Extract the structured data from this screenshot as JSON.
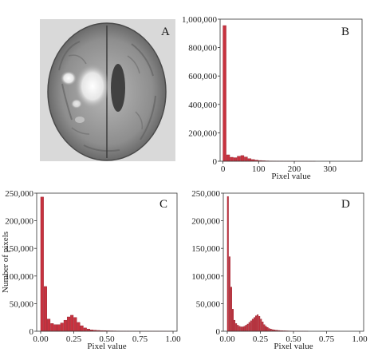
{
  "panels": {
    "A": {
      "label": "A",
      "image": "mri-brain-scan"
    }
  },
  "chart_data": [
    {
      "panel": "B",
      "type": "bar",
      "label": "B",
      "xlabel": "Pixel value",
      "ylabel": "",
      "xlim": [
        -8,
        390
      ],
      "ylim": [
        0,
        1000000
      ],
      "xticks": [
        0,
        100,
        200,
        300
      ],
      "yticks": [
        0,
        200000,
        400000,
        600000,
        800000,
        1000000
      ],
      "ytick_labels": [
        "0",
        "200,000",
        "400,000",
        "600,000",
        "800,000",
        "1,000,000"
      ],
      "xtick_labels": [
        "0",
        "100",
        "200",
        "300"
      ],
      "bin_width": 10,
      "x": [
        0,
        10,
        20,
        30,
        40,
        50,
        60,
        70,
        80,
        90,
        100,
        110,
        120,
        130,
        140,
        150,
        160,
        170,
        180,
        190,
        200,
        210,
        220,
        230,
        240,
        250
      ],
      "values": [
        955000,
        45000,
        28000,
        25000,
        35000,
        40000,
        30000,
        18000,
        12000,
        8000,
        5000,
        3500,
        2500,
        1800,
        1300,
        1000,
        800,
        600,
        500,
        400,
        300,
        200,
        150,
        100,
        80,
        50
      ]
    },
    {
      "panel": "C",
      "type": "bar",
      "label": "C",
      "xlabel": "Pixel value",
      "ylabel": "Number of pixels",
      "xlim": [
        -0.03,
        1.03
      ],
      "ylim": [
        0,
        250000
      ],
      "xticks": [
        0,
        0.25,
        0.5,
        0.75,
        1.0
      ],
      "xtick_labels": [
        "0.00",
        "0.25",
        "0.50",
        "0.75",
        "1.00"
      ],
      "yticks": [
        0,
        50000,
        100000,
        150000,
        200000,
        250000
      ],
      "ytick_labels": [
        "0",
        "50,000",
        "100,000",
        "150,000",
        "200,000",
        "250,000"
      ],
      "bin_width": 0.025,
      "x": [
        0.0,
        0.025,
        0.05,
        0.075,
        0.1,
        0.125,
        0.15,
        0.175,
        0.2,
        0.225,
        0.25,
        0.275,
        0.3,
        0.325,
        0.35,
        0.375,
        0.4,
        0.425,
        0.45,
        0.475,
        0.5,
        0.525,
        0.55,
        0.575,
        0.6,
        0.625,
        0.65,
        0.675,
        0.7,
        0.725,
        0.75,
        0.775,
        0.8,
        0.825,
        0.85,
        0.875,
        0.9,
        0.925,
        0.95,
        0.975
      ],
      "values": [
        243000,
        81000,
        22000,
        14000,
        12000,
        12000,
        15000,
        20000,
        26000,
        29000,
        25000,
        16000,
        10000,
        6000,
        4000,
        2500,
        2000,
        1500,
        1200,
        1000,
        800,
        700,
        600,
        500,
        400,
        350,
        300,
        280,
        250,
        200,
        180,
        160,
        140,
        120,
        100,
        90,
        80,
        70,
        60,
        50
      ]
    },
    {
      "panel": "D",
      "type": "bar",
      "label": "D",
      "xlabel": "Pixel value",
      "ylabel": "",
      "xlim": [
        -0.03,
        1.03
      ],
      "ylim": [
        0,
        250000
      ],
      "xticks": [
        0,
        0.25,
        0.5,
        0.75,
        1.0
      ],
      "xtick_labels": [
        "0.00",
        "0.25",
        "0.50",
        "0.75",
        "1.00"
      ],
      "yticks": [
        0,
        50000,
        100000,
        150000,
        200000,
        250000
      ],
      "ytick_labels": [
        "0",
        "50,000",
        "100,000",
        "150,000",
        "200,000",
        "250,000"
      ],
      "bin_width": 0.0125,
      "x": [
        0.0,
        0.0125,
        0.025,
        0.0375,
        0.05,
        0.0625,
        0.075,
        0.0875,
        0.1,
        0.1125,
        0.125,
        0.1375,
        0.15,
        0.1625,
        0.175,
        0.1875,
        0.2,
        0.2125,
        0.225,
        0.2375,
        0.25,
        0.2625,
        0.275,
        0.2875,
        0.3,
        0.3125,
        0.325,
        0.3375,
        0.35,
        0.3625,
        0.375,
        0.3875,
        0.4,
        0.4125,
        0.425,
        0.4375,
        0.45,
        0.4625,
        0.475,
        0.4875,
        0.5,
        0.5125,
        0.525,
        0.5375,
        0.55,
        0.5625,
        0.575,
        0.5875,
        0.6
      ],
      "values": [
        244000,
        135000,
        80000,
        40000,
        20000,
        14000,
        11000,
        9000,
        8000,
        8000,
        9000,
        11000,
        13000,
        16000,
        19000,
        22000,
        25000,
        28000,
        30000,
        27000,
        22000,
        17000,
        12000,
        9000,
        7000,
        5000,
        4000,
        3000,
        2500,
        2000,
        1700,
        1400,
        1200,
        1000,
        900,
        800,
        700,
        600,
        500,
        450,
        400,
        350,
        300,
        250,
        200,
        180,
        160,
        140,
        120
      ]
    }
  ]
}
